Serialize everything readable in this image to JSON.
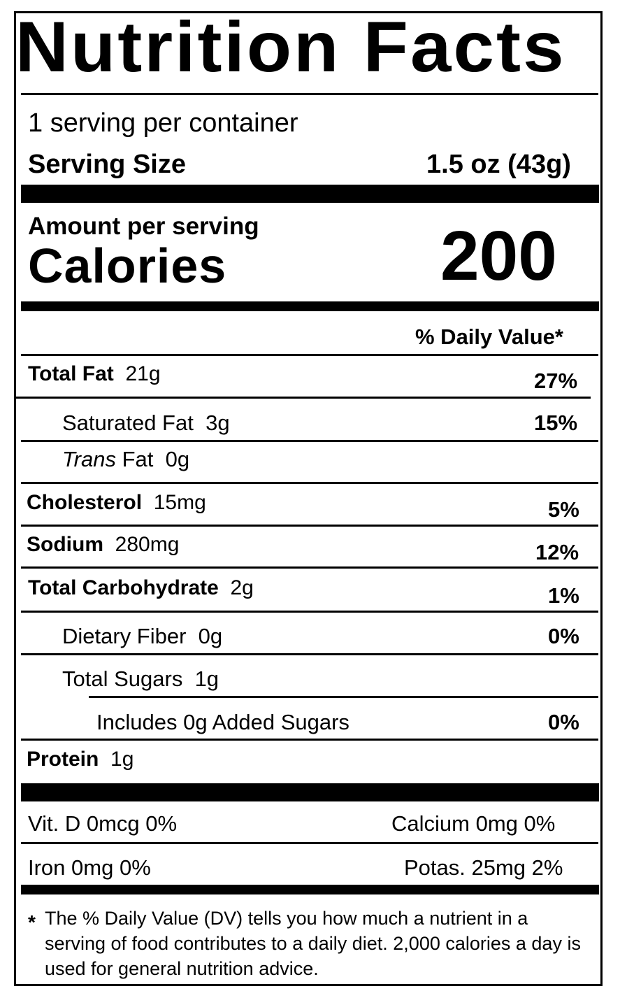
{
  "title": "Nutrition Facts",
  "servings_per_container": "1 serving per container",
  "serving_size": {
    "label": "Serving Size",
    "value": "1.5 oz (43g)"
  },
  "amount_per_serving": "Amount per serving",
  "calories": {
    "label": "Calories",
    "value": "200"
  },
  "daily_value_header": "% Daily Value*",
  "nutrients": {
    "total_fat": {
      "label": "Total Fat",
      "amount": "21g",
      "dv": "27%"
    },
    "saturated_fat": {
      "label": "Saturated Fat",
      "amount": "3g",
      "dv": "15%"
    },
    "trans_fat": {
      "label_italic": "Trans",
      "label": "Fat",
      "amount": "0g"
    },
    "cholesterol": {
      "label": "Cholesterol",
      "amount": "15mg",
      "dv": "5%"
    },
    "sodium": {
      "label": "Sodium",
      "amount": "280mg",
      "dv": "12%"
    },
    "total_carbohydrate": {
      "label": "Total Carbohydrate",
      "amount": "2g",
      "dv": "1%"
    },
    "dietary_fiber": {
      "label": "Dietary Fiber",
      "amount": "0g",
      "dv": "0%"
    },
    "total_sugars": {
      "label": "Total Sugars",
      "amount": "1g"
    },
    "added_sugars": {
      "label": "Includes 0g Added Sugars",
      "dv": "0%"
    },
    "protein": {
      "label": "Protein",
      "amount": "1g"
    }
  },
  "vitamins": {
    "vitamin_d": "Vit. D  0mcg 0%",
    "calcium": "Calcium  0mg 0%",
    "iron": "Iron 0mg 0%",
    "potassium": "Potas. 25mg 2%"
  },
  "footnote": {
    "asterisk": "*",
    "text": "The % Daily Value (DV) tells you how much a nutrient in a serving of food contributes to a daily diet. 2,000 calories a day is used for general nutrition advice."
  }
}
